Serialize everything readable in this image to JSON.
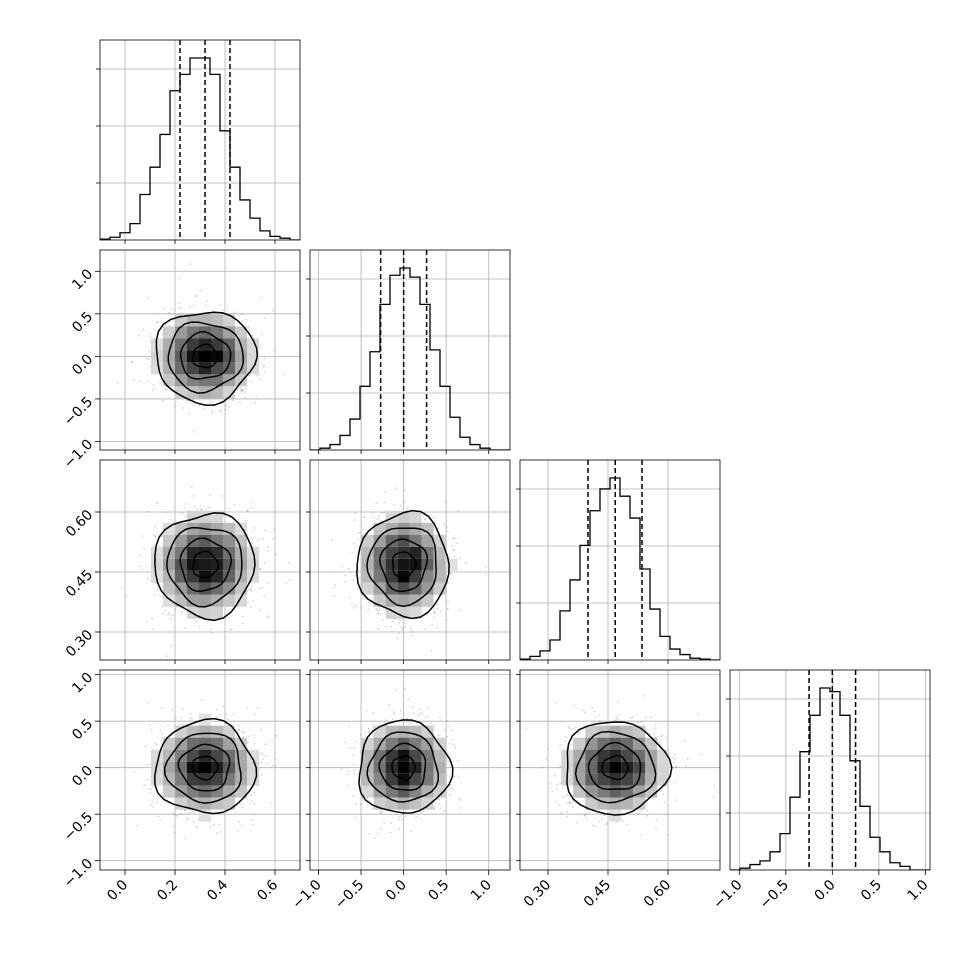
{
  "chart_data": {
    "type": "corner",
    "parameters": [
      {
        "index": 0,
        "range": [
          -0.1,
          0.7
        ],
        "ticks": [
          0.0,
          0.2,
          0.4,
          0.6
        ],
        "tick_labels": [
          "0.0",
          "0.2",
          "0.4",
          "0.6"
        ],
        "median": 0.32,
        "quantile_16": 0.22,
        "quantile_84": 0.42,
        "std": 0.1
      },
      {
        "index": 1,
        "range": [
          -1.1,
          1.25
        ],
        "ticks": [
          -1.0,
          -0.5,
          0.0,
          0.5,
          1.0
        ],
        "tick_labels": [
          "−1.0",
          "−0.5",
          "0.0",
          "0.5",
          "1.0"
        ],
        "median": 0.0,
        "quantile_16": -0.27,
        "quantile_84": 0.27,
        "std": 0.27
      },
      {
        "index": 2,
        "range": [
          0.23,
          0.73
        ],
        "ticks": [
          0.3,
          0.45,
          0.6
        ],
        "tick_labels": [
          "0.30",
          "0.45",
          "0.60"
        ],
        "median": 0.468,
        "quantile_16": 0.4,
        "quantile_84": 0.535,
        "std": 0.065
      },
      {
        "index": 3,
        "range": [
          -1.1,
          1.05
        ],
        "ticks": [
          -1.0,
          -0.5,
          0.0,
          0.5,
          1.0
        ],
        "tick_labels": [
          "−1.0",
          "−0.5",
          "0.0",
          "0.5",
          "1.0"
        ],
        "median": 0.0,
        "quantile_16": -0.25,
        "quantile_84": 0.25,
        "std": 0.25
      }
    ],
    "histograms": [
      {
        "param": 0,
        "bin_start": -0.1,
        "bin_width": 0.04,
        "counts": [
          0.005,
          0.015,
          0.04,
          0.09,
          0.25,
          0.4,
          0.58,
          0.82,
          0.91,
          1.0,
          1.0,
          0.91,
          0.6,
          0.4,
          0.22,
          0.12,
          0.05,
          0.02,
          0.01,
          0.0
        ]
      },
      {
        "param": 1,
        "bin_start": -1.1,
        "bin_width": 0.1175,
        "counts": [
          0.0,
          0.01,
          0.03,
          0.08,
          0.17,
          0.35,
          0.54,
          0.8,
          0.96,
          1.0,
          0.95,
          0.8,
          0.55,
          0.35,
          0.18,
          0.07,
          0.03,
          0.01,
          0.0,
          0.0
        ]
      },
      {
        "param": 2,
        "bin_start": 0.23,
        "bin_width": 0.025,
        "counts": [
          0.005,
          0.02,
          0.05,
          0.11,
          0.27,
          0.44,
          0.63,
          0.82,
          0.94,
          1.0,
          0.9,
          0.78,
          0.5,
          0.28,
          0.13,
          0.06,
          0.03,
          0.01,
          0.005,
          0.0
        ]
      },
      {
        "param": 3,
        "bin_start": -1.1,
        "bin_width": 0.1075,
        "counts": [
          0.0,
          0.01,
          0.03,
          0.05,
          0.1,
          0.2,
          0.4,
          0.65,
          0.85,
          1.0,
          0.98,
          0.85,
          0.6,
          0.35,
          0.18,
          0.1,
          0.04,
          0.02,
          0.0,
          0.0
        ]
      }
    ],
    "pairs": [
      {
        "x": 0,
        "y": 1
      },
      {
        "x": 0,
        "y": 2
      },
      {
        "x": 1,
        "y": 2
      },
      {
        "x": 0,
        "y": 3
      },
      {
        "x": 1,
        "y": 3
      },
      {
        "x": 2,
        "y": 3
      }
    ],
    "contour_levels_sigma": [
      0.5,
      1.0,
      1.5,
      2.0
    ],
    "grid": true,
    "colors": {
      "line": "#000000",
      "grid": "#b0b0b0",
      "scatter": "#808080"
    }
  }
}
